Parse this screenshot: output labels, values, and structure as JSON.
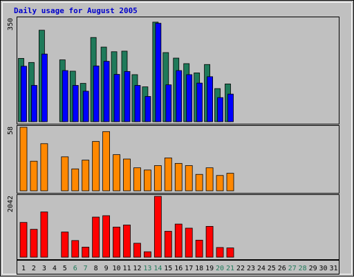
{
  "chart_data": [
    {
      "type": "bar",
      "title": "Daily usage for August 2005",
      "categories": [
        "1",
        "2",
        "3",
        "4",
        "5",
        "6",
        "7",
        "8",
        "9",
        "10",
        "11",
        "12",
        "13",
        "14",
        "15",
        "16",
        "17",
        "18",
        "19",
        "20",
        "21",
        "22",
        "23",
        "24",
        "25",
        "26",
        "27",
        "28",
        "29",
        "30",
        "31"
      ],
      "weekend_days": [
        "6",
        "7",
        "13",
        "14",
        "20",
        "21",
        "27",
        "28"
      ],
      "y_max_label": "350",
      "ylim": [
        0,
        350
      ],
      "series": [
        {
          "key": "green",
          "color": "#1f7a5a",
          "values": [
            218,
            204,
            315,
            0,
            213,
            174,
            132,
            290,
            257,
            241,
            243,
            162,
            120,
            343,
            238,
            219,
            200,
            168,
            197,
            114,
            130,
            0,
            0,
            0,
            0,
            0,
            0,
            0,
            0,
            0,
            0
          ]
        },
        {
          "key": "blue",
          "color": "#0000ff",
          "values": [
            191,
            125,
            233,
            0,
            176,
            125,
            105,
            192,
            208,
            163,
            173,
            125,
            87,
            339,
            127,
            176,
            162,
            133,
            155,
            83,
            95,
            0,
            0,
            0,
            0,
            0,
            0,
            0,
            0,
            0,
            0
          ]
        }
      ]
    },
    {
      "type": "bar",
      "y_max_label": "58",
      "ylim": [
        0,
        58
      ],
      "series": [
        {
          "key": "orange",
          "color": "#ff8800",
          "values": [
            58,
            27,
            43,
            0,
            31,
            20,
            28,
            45,
            54,
            33,
            29,
            21,
            19,
            23,
            30,
            25,
            23,
            15,
            21,
            14,
            16,
            0,
            0,
            0,
            0,
            0,
            0,
            0,
            0,
            0,
            0
          ]
        }
      ]
    },
    {
      "type": "bar",
      "y_max_label": "2042",
      "ylim": [
        0,
        2042
      ],
      "series": [
        {
          "key": "red",
          "color": "#ff0000",
          "values": [
            1167,
            936,
            1519,
            0,
            845,
            559,
            338,
            1346,
            1393,
            1011,
            1081,
            468,
            182,
            2042,
            870,
            1112,
            975,
            572,
            1035,
            325,
            312,
            0,
            0,
            0,
            0,
            0,
            0,
            0,
            0,
            0,
            0
          ]
        }
      ]
    }
  ]
}
